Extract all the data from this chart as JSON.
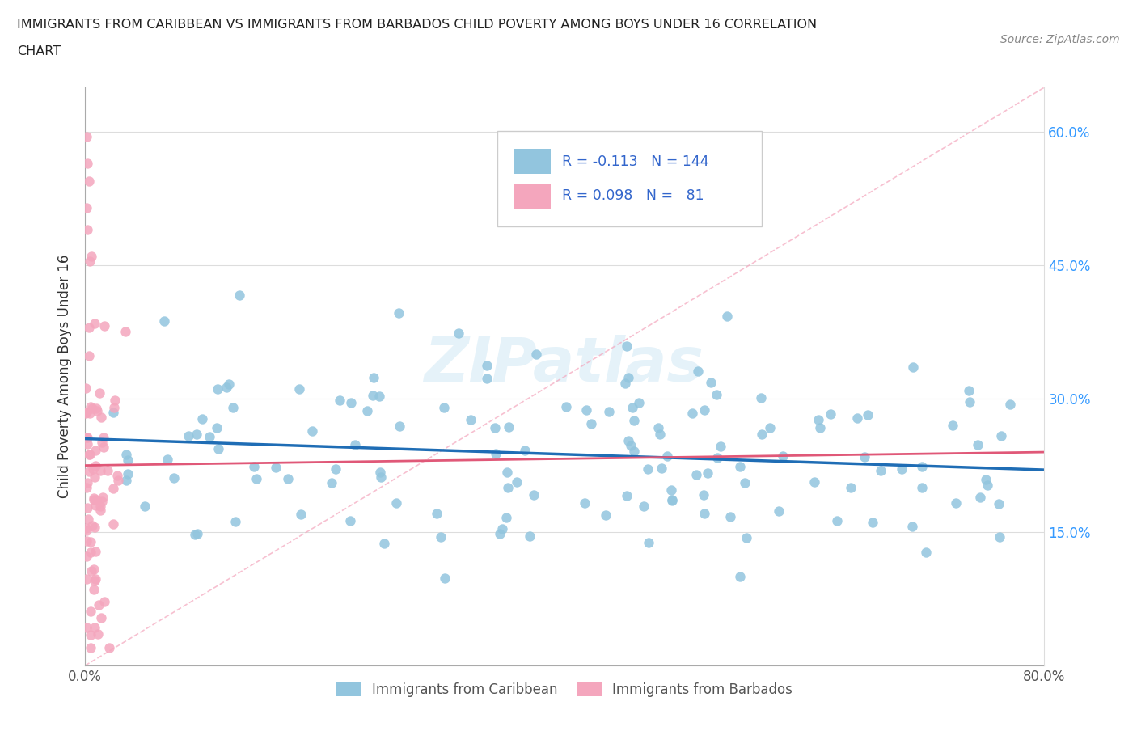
{
  "title_line1": "IMMIGRANTS FROM CARIBBEAN VS IMMIGRANTS FROM BARBADOS CHILD POVERTY AMONG BOYS UNDER 16 CORRELATION",
  "title_line2": "CHART",
  "source": "Source: ZipAtlas.com",
  "ylabel": "Child Poverty Among Boys Under 16",
  "xlim": [
    0.0,
    0.8
  ],
  "ylim": [
    0.0,
    0.65
  ],
  "xtick_positions": [
    0.0,
    0.1,
    0.2,
    0.3,
    0.4,
    0.5,
    0.6,
    0.7,
    0.8
  ],
  "xticklabels": [
    "0.0%",
    "",
    "",
    "",
    "",
    "",
    "",
    "",
    "80.0%"
  ],
  "ytick_positions": [
    0.15,
    0.3,
    0.45,
    0.6
  ],
  "ytick_labels_right": [
    "15.0%",
    "30.0%",
    "45.0%",
    "60.0%"
  ],
  "R_caribbean": -0.113,
  "N_caribbean": 144,
  "R_barbados": 0.098,
  "N_barbados": 81,
  "color_caribbean": "#92c5de",
  "color_barbados": "#f4a6bd",
  "trendline_caribbean_color": "#1f6db5",
  "trendline_barbados_color": "#e05878",
  "diagonal_color": "#f4a6bd",
  "watermark": "ZIPatlas",
  "legend_R_N_color": "#3366cc",
  "legend_label_color": "#333333"
}
